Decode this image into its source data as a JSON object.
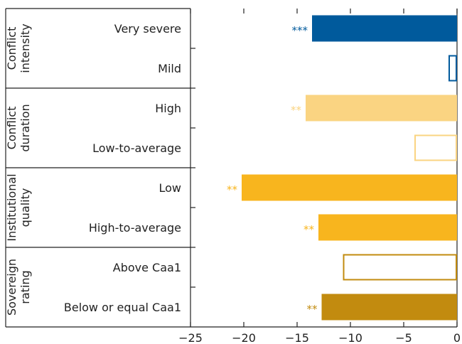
{
  "chart_data": {
    "type": "bar",
    "orientation": "horizontal",
    "xlim": [
      -25,
      0
    ],
    "xticks": [
      -25,
      -20,
      -15,
      -10,
      -5,
      0
    ],
    "xtick_labels": [
      "−25",
      "−20",
      "−15",
      "−10",
      "−5",
      "0"
    ],
    "groups": [
      {
        "label_lines": [
          "Conflict",
          "intensity"
        ],
        "categories": [
          0,
          1
        ]
      },
      {
        "label_lines": [
          "Conflict",
          "duration"
        ],
        "categories": [
          2,
          3
        ]
      },
      {
        "label_lines": [
          "Institutional",
          "quality"
        ],
        "categories": [
          4,
          5
        ]
      },
      {
        "label_lines": [
          "Sovereign",
          "rating"
        ],
        "categories": [
          6,
          7
        ]
      }
    ],
    "categories": [
      "Very severe",
      "Mild",
      "High",
      "Low-to-average",
      "Low",
      "High-to-average",
      "Above Caa1",
      "Below or equal Caa1"
    ],
    "values": [
      -13.6,
      -0.8,
      -14.2,
      -4.0,
      -20.2,
      -13.0,
      -10.7,
      -12.7
    ],
    "significance": [
      "***",
      "",
      "**",
      "",
      "**",
      "**",
      "",
      "**"
    ],
    "filled": [
      true,
      false,
      true,
      false,
      true,
      true,
      false,
      true
    ],
    "colors": [
      "#005A9C",
      "#005A9C",
      "#FAD482",
      "#FAD482",
      "#F8B51E",
      "#F8B51E",
      "#C28B0F",
      "#C28B0F"
    ]
  }
}
